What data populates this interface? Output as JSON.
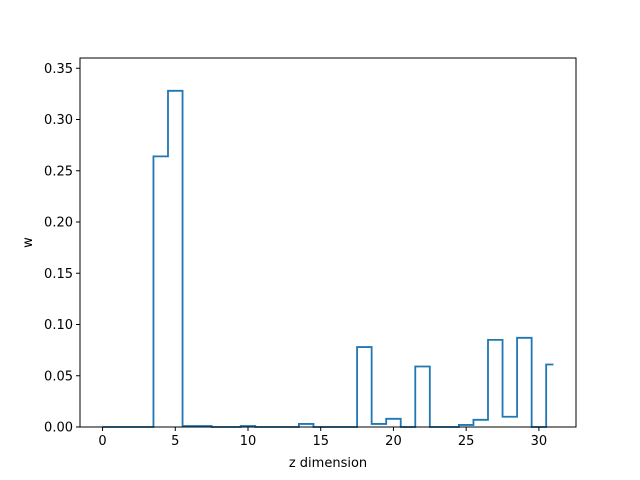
{
  "chart_data": {
    "type": "line",
    "style": "step-mid",
    "title": "",
    "xlabel": "z dimension",
    "ylabel": "w",
    "xlim": [
      -1.55,
      32.55
    ],
    "ylim": [
      0,
      0.36
    ],
    "xticks": [
      0,
      5,
      10,
      15,
      20,
      25,
      30
    ],
    "yticks": [
      0.0,
      0.05,
      0.1,
      0.15,
      0.2,
      0.25,
      0.3,
      0.35
    ],
    "ytick_labels": [
      "0.00",
      "0.05",
      "0.10",
      "0.15",
      "0.20",
      "0.25",
      "0.30",
      "0.35"
    ],
    "grid": false,
    "color": "#1f77b4",
    "series": [
      {
        "x": [
          0,
          1,
          2,
          3,
          4,
          5,
          6,
          7,
          8,
          9,
          10,
          11,
          12,
          13,
          14,
          15,
          16,
          17,
          18,
          19,
          20,
          21,
          22,
          23,
          24,
          25,
          26,
          27,
          28,
          29,
          30,
          31
        ],
        "values": [
          0,
          0,
          0,
          0,
          0.264,
          0.328,
          0.001,
          0.001,
          0,
          0,
          0.001,
          0,
          0,
          0,
          0.003,
          0,
          0,
          0,
          0.078,
          0.003,
          0.008,
          0,
          0.059,
          0,
          0,
          0.002,
          0.007,
          0.085,
          0.01,
          0.087,
          0,
          0.061
        ]
      }
    ]
  }
}
